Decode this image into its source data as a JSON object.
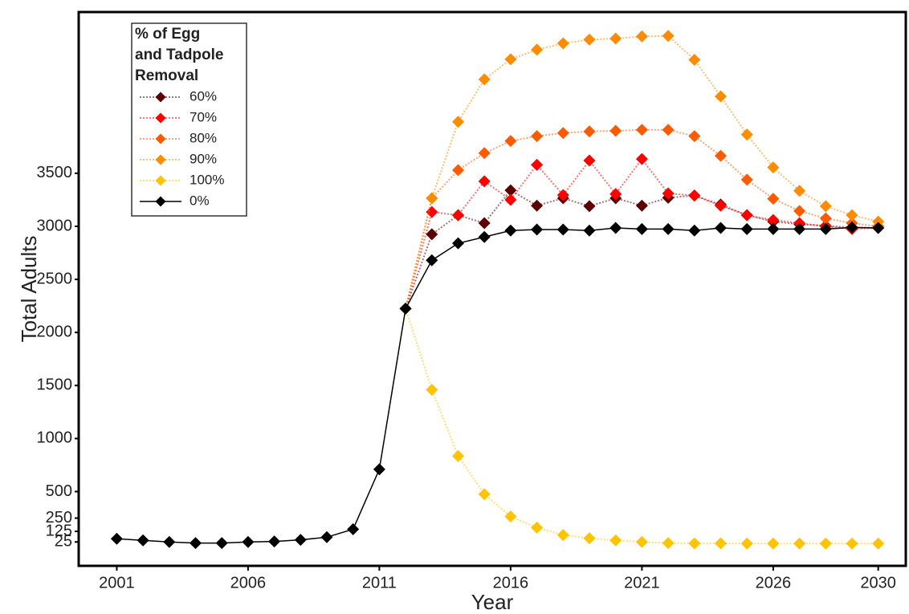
{
  "chart_data": {
    "type": "line",
    "xlabel": "Year",
    "ylabel": "Total Adults",
    "legend_title": [
      "% of Egg",
      "and Tadpole",
      "Removal"
    ],
    "legend_position": "upper left",
    "x": [
      2001,
      2002,
      2003,
      2004,
      2005,
      2006,
      2007,
      2008,
      2009,
      2010,
      2011,
      2012,
      2013,
      2014,
      2015,
      2016,
      2017,
      2018,
      2019,
      2020,
      2021,
      2022,
      2023,
      2024,
      2025,
      2026,
      2027,
      2028,
      2029,
      2030
    ],
    "xlim": [
      1999.55,
      2031.05
    ],
    "xticks": [
      2001,
      2006,
      2011,
      2016,
      2021,
      2026,
      2030
    ],
    "ylim": [
      -200,
      5020
    ],
    "yticks": [
      25,
      125,
      250,
      500,
      1000,
      1500,
      2000,
      2500,
      3000,
      3500
    ],
    "series": [
      {
        "name": "60%",
        "color": "#5c0000",
        "style": "dotted",
        "values": [
          null,
          null,
          null,
          null,
          null,
          null,
          null,
          null,
          null,
          null,
          null,
          2225,
          2925,
          3105,
          3030,
          3340,
          3195,
          3265,
          3190,
          3265,
          3195,
          3270,
          3290,
          3205,
          3105,
          3045,
          3020,
          3005,
          2990,
          2985
        ]
      },
      {
        "name": "70%",
        "color": "#ff0000",
        "style": "dotted",
        "values": [
          null,
          null,
          null,
          null,
          null,
          null,
          null,
          null,
          null,
          null,
          null,
          2225,
          3135,
          3105,
          3425,
          3250,
          3580,
          3295,
          3620,
          3305,
          3635,
          3310,
          3290,
          3195,
          3105,
          3060,
          3030,
          3000,
          2975,
          2985
        ]
      },
      {
        "name": "80%",
        "color": "#ff5a00",
        "style": "dotted",
        "values": [
          null,
          null,
          null,
          null,
          null,
          null,
          null,
          null,
          null,
          null,
          null,
          2225,
          3265,
          3530,
          3690,
          3805,
          3850,
          3880,
          3895,
          3900,
          3910,
          3910,
          3850,
          3665,
          3440,
          3260,
          3145,
          3075,
          3030,
          3000
        ]
      },
      {
        "name": "90%",
        "color": "#ff8c00",
        "style": "dotted",
        "values": [
          null,
          null,
          null,
          null,
          null,
          null,
          null,
          null,
          null,
          null,
          null,
          2225,
          3265,
          3985,
          4385,
          4575,
          4665,
          4725,
          4760,
          4770,
          4790,
          4795,
          4570,
          4225,
          3865,
          3555,
          3335,
          3190,
          3105,
          3045
        ]
      },
      {
        "name": "100%",
        "color": "#ffc400",
        "style": "dotted",
        "values": [
          null,
          null,
          null,
          null,
          null,
          null,
          null,
          null,
          null,
          null,
          null,
          2225,
          1460,
          835,
          475,
          265,
          160,
          90,
          60,
          40,
          25,
          15,
          12,
          12,
          10,
          10,
          10,
          10,
          10,
          10
        ]
      },
      {
        "name": "0%",
        "color": "#000000",
        "style": "solid",
        "values": [
          55,
          40,
          25,
          15,
          15,
          25,
          30,
          45,
          70,
          145,
          710,
          2225,
          2680,
          2840,
          2900,
          2960,
          2970,
          2970,
          2960,
          2985,
          2975,
          2975,
          2960,
          2985,
          2975,
          2975,
          2975,
          2975,
          2990,
          2985
        ]
      }
    ]
  }
}
